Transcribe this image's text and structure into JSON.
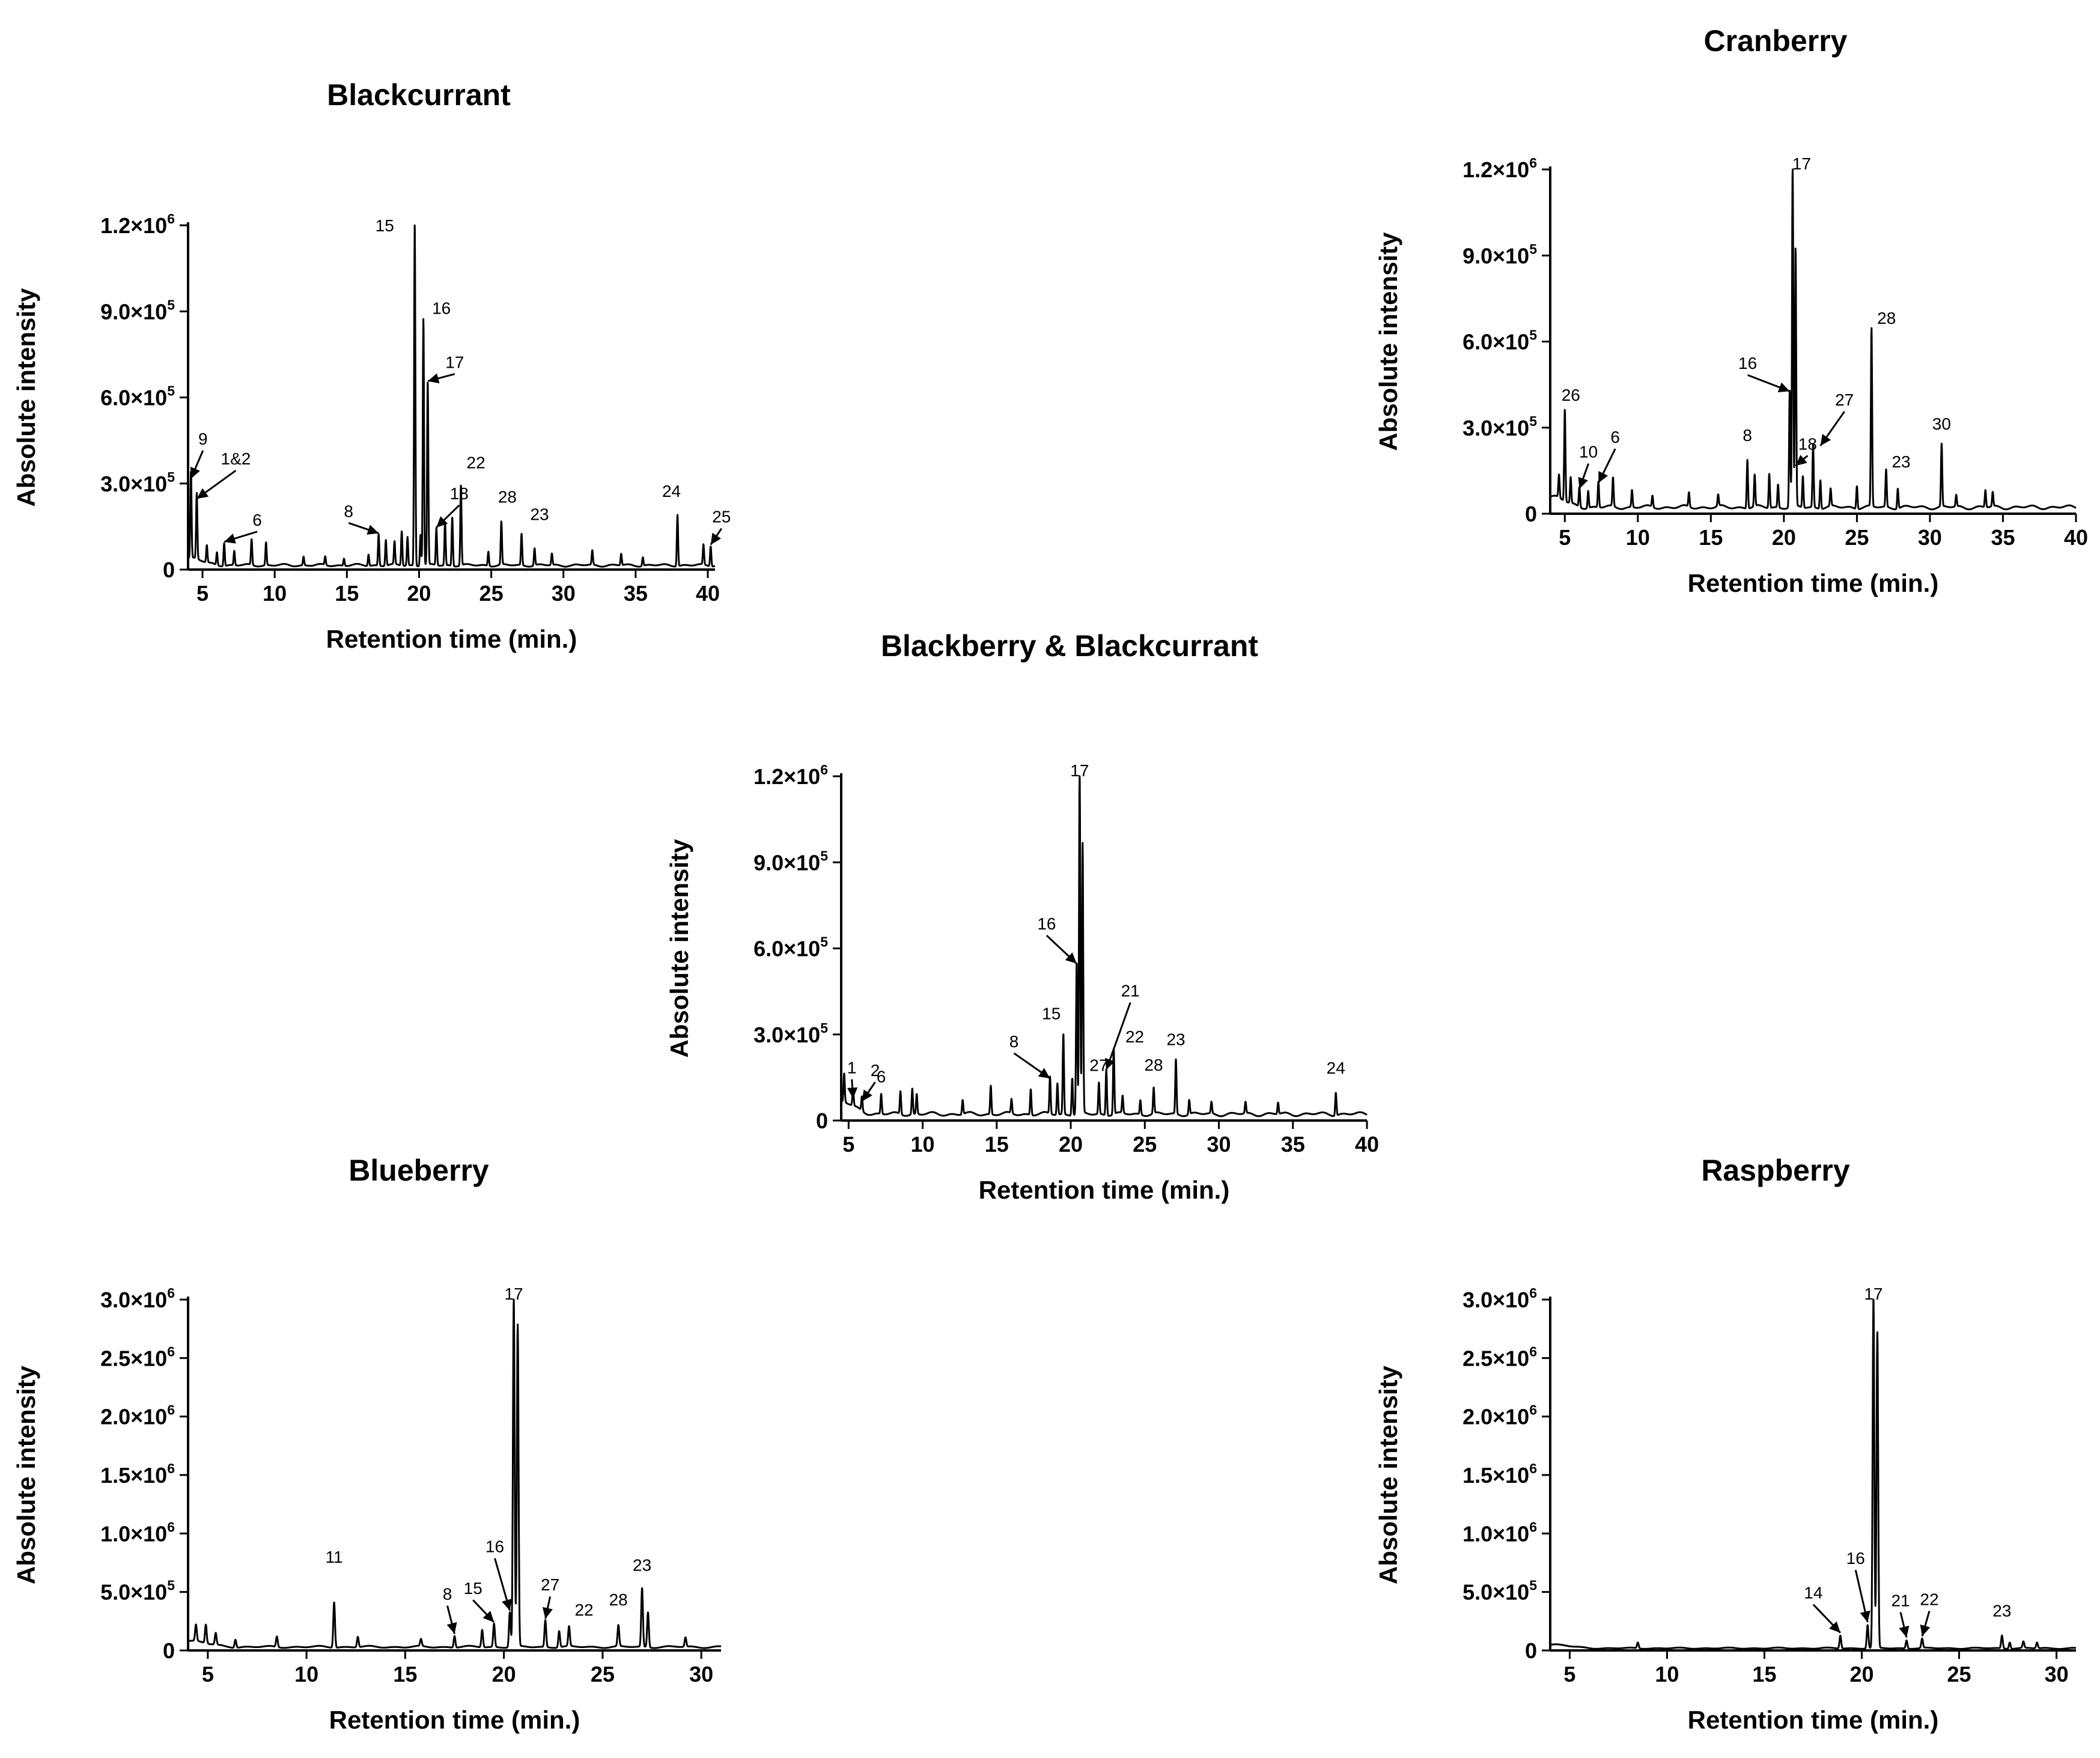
{
  "chart_data": [
    {
      "type": "line",
      "title": "Blackcurrant",
      "xlabel": "Retention time (min.)",
      "ylabel": "Absolute intensity",
      "xlim": [
        4,
        40.5
      ],
      "ylim": [
        0,
        1200000
      ],
      "xticks": [
        5,
        10,
        15,
        20,
        25,
        30,
        35,
        40
      ],
      "xtick_labels": [
        "5",
        "10",
        "15",
        "20",
        "25",
        "30",
        "35",
        "40"
      ],
      "yticks": [
        {
          "value": 0,
          "mant": "0",
          "exp": ""
        },
        {
          "value": 300000,
          "mant": "3.0×10",
          "exp": "5"
        },
        {
          "value": 600000,
          "mant": "6.0×10",
          "exp": "5"
        },
        {
          "value": 900000,
          "mant": "9.0×10",
          "exp": "5"
        },
        {
          "value": 1200000,
          "mant": "1.2×10",
          "exp": "6"
        }
      ],
      "baseline": 20000,
      "peaks": [
        [
          4.2,
          300000
        ],
        [
          4.6,
          230000
        ],
        [
          5.3,
          60000
        ],
        [
          6.0,
          45000
        ],
        [
          6.5,
          80000
        ],
        [
          7.2,
          50000
        ],
        [
          8.4,
          90000
        ],
        [
          9.4,
          80000
        ],
        [
          12.0,
          30000
        ],
        [
          13.5,
          30000
        ],
        [
          14.8,
          25000
        ],
        [
          16.5,
          40000
        ],
        [
          17.2,
          110000
        ],
        [
          17.7,
          90000
        ],
        [
          18.3,
          80000
        ],
        [
          18.8,
          120000
        ],
        [
          19.2,
          100000
        ],
        [
          19.7,
          1200000
        ],
        [
          20.1,
          110000
        ],
        [
          20.3,
          860000
        ],
        [
          20.6,
          640000
        ],
        [
          21.2,
          130000
        ],
        [
          21.8,
          150000
        ],
        [
          22.3,
          170000
        ],
        [
          22.9,
          280000
        ],
        [
          24.8,
          50000
        ],
        [
          25.7,
          150000
        ],
        [
          27.1,
          110000
        ],
        [
          28.0,
          60000
        ],
        [
          29.2,
          40000
        ],
        [
          32.0,
          50000
        ],
        [
          34.0,
          40000
        ],
        [
          35.5,
          30000
        ],
        [
          37.9,
          180000
        ],
        [
          39.7,
          70000
        ],
        [
          40.2,
          70000
        ]
      ],
      "annotations": [
        {
          "label": "15",
          "x": 19.7,
          "y": 1200000,
          "arrow": false
        },
        {
          "label": "16",
          "x": 20.3,
          "y": 860000,
          "arrow": false
        },
        {
          "label": "17",
          "x": 20.6,
          "y": 640000,
          "arrow": true
        },
        {
          "label": "9",
          "x": 4.2,
          "y": 300000,
          "arrow": true
        },
        {
          "label": "1&2",
          "x": 4.6,
          "y": 230000,
          "arrow": true
        },
        {
          "label": "6",
          "x": 6.5,
          "y": 80000,
          "arrow": true
        },
        {
          "label": "8",
          "x": 17.2,
          "y": 110000,
          "arrow": true
        },
        {
          "label": "18",
          "x": 21.2,
          "y": 130000,
          "arrow": true
        },
        {
          "label": "22",
          "x": 22.9,
          "y": 280000,
          "arrow": false
        },
        {
          "label": "28",
          "x": 25.7,
          "y": 150000,
          "arrow": false
        },
        {
          "label": "23",
          "x": 27.1,
          "y": 110000,
          "arrow": false
        },
        {
          "label": "24",
          "x": 37.9,
          "y": 180000,
          "arrow": false
        },
        {
          "label": "25",
          "x": 40.2,
          "y": 70000,
          "arrow": true
        }
      ]
    },
    {
      "type": "line",
      "title": "Cranberry",
      "xlabel": "Retention time (min.)",
      "ylabel": "Absolute intensity",
      "xlim": [
        4,
        40
      ],
      "ylim": [
        0,
        1200000
      ],
      "xticks": [
        5,
        10,
        15,
        20,
        25,
        30,
        35,
        40
      ],
      "xtick_labels": [
        "5",
        "10",
        "15",
        "20",
        "25",
        "30",
        "35",
        "40"
      ],
      "yticks": [
        {
          "value": 0,
          "mant": "0",
          "exp": ""
        },
        {
          "value": 300000,
          "mant": "3.0×10",
          "exp": "5"
        },
        {
          "value": 600000,
          "mant": "6.0×10",
          "exp": "5"
        },
        {
          "value": 900000,
          "mant": "9.0×10",
          "exp": "5"
        },
        {
          "value": 1200000,
          "mant": "1.2×10",
          "exp": "6"
        }
      ],
      "baseline": 30000,
      "peaks": [
        [
          4.6,
          80000
        ],
        [
          5.0,
          320000
        ],
        [
          5.4,
          90000
        ],
        [
          6.0,
          70000
        ],
        [
          6.6,
          60000
        ],
        [
          7.3,
          90000
        ],
        [
          8.3,
          100000
        ],
        [
          9.6,
          60000
        ],
        [
          11.0,
          40000
        ],
        [
          13.5,
          50000
        ],
        [
          15.5,
          40000
        ],
        [
          17.5,
          170000
        ],
        [
          18.0,
          110000
        ],
        [
          19.0,
          120000
        ],
        [
          19.6,
          80000
        ],
        [
          20.4,
          410000
        ],
        [
          20.6,
          1200000
        ],
        [
          20.8,
          900000
        ],
        [
          21.3,
          110000
        ],
        [
          22.0,
          220000
        ],
        [
          22.5,
          100000
        ],
        [
          23.2,
          60000
        ],
        [
          25.0,
          80000
        ],
        [
          26.0,
          620000
        ],
        [
          27.0,
          130000
        ],
        [
          27.8,
          70000
        ],
        [
          30.8,
          220000
        ],
        [
          31.8,
          40000
        ],
        [
          33.8,
          60000
        ],
        [
          34.3,
          50000
        ]
      ],
      "annotations": [
        {
          "label": "17",
          "x": 20.6,
          "y": 1200000,
          "arrow": false
        },
        {
          "label": "28",
          "x": 26.0,
          "y": 620000,
          "arrow": false
        },
        {
          "label": "26",
          "x": 5.0,
          "y": 320000,
          "arrow": false
        },
        {
          "label": "10",
          "x": 6.0,
          "y": 70000,
          "arrow": true
        },
        {
          "label": "6",
          "x": 7.3,
          "y": 90000,
          "arrow": true
        },
        {
          "label": "8",
          "x": 17.5,
          "y": 170000,
          "arrow": false
        },
        {
          "label": "16",
          "x": 20.4,
          "y": 410000,
          "arrow": true
        },
        {
          "label": "18",
          "x": 20.8,
          "y": 150000,
          "arrow": true
        },
        {
          "label": "27",
          "x": 22.5,
          "y": 220000,
          "arrow": true
        },
        {
          "label": "23",
          "x": 27.0,
          "y": 130000,
          "arrow": false
        },
        {
          "label": "30",
          "x": 30.8,
          "y": 220000,
          "arrow": false
        }
      ]
    },
    {
      "type": "line",
      "title": "Blackberry & Blackcurrant",
      "xlabel": "Retention time (min.)",
      "ylabel": "Absolute intensity",
      "xlim": [
        4.5,
        40
      ],
      "ylim": [
        0,
        1200000
      ],
      "xticks": [
        5,
        10,
        15,
        20,
        25,
        30,
        35,
        40
      ],
      "xtick_labels": [
        "5",
        "10",
        "15",
        "20",
        "25",
        "30",
        "35",
        "40"
      ],
      "yticks": [
        {
          "value": 0,
          "mant": "0",
          "exp": ""
        },
        {
          "value": 300000,
          "mant": "3.0×10",
          "exp": "5"
        },
        {
          "value": 600000,
          "mant": "6.0×10",
          "exp": "5"
        },
        {
          "value": 900000,
          "mant": "9.0×10",
          "exp": "5"
        },
        {
          "value": 1200000,
          "mant": "1.2×10",
          "exp": "6"
        }
      ],
      "baseline": 30000,
      "peaks": [
        [
          4.7,
          100000
        ],
        [
          5.3,
          60000
        ],
        [
          5.9,
          50000
        ],
        [
          7.2,
          70000
        ],
        [
          8.5,
          80000
        ],
        [
          9.3,
          90000
        ],
        [
          9.6,
          70000
        ],
        [
          12.7,
          50000
        ],
        [
          14.6,
          100000
        ],
        [
          16.0,
          50000
        ],
        [
          17.3,
          90000
        ],
        [
          18.6,
          130000
        ],
        [
          19.1,
          110000
        ],
        [
          19.5,
          280000
        ],
        [
          20.1,
          130000
        ],
        [
          20.4,
          530000
        ],
        [
          20.6,
          1200000
        ],
        [
          20.8,
          940000
        ],
        [
          21.9,
          110000
        ],
        [
          22.4,
          160000
        ],
        [
          22.9,
          230000
        ],
        [
          23.5,
          60000
        ],
        [
          24.7,
          50000
        ],
        [
          25.6,
          90000
        ],
        [
          27.1,
          190000
        ],
        [
          28.0,
          50000
        ],
        [
          29.5,
          40000
        ],
        [
          31.8,
          40000
        ],
        [
          34.0,
          40000
        ],
        [
          37.9,
          80000
        ]
      ],
      "annotations": [
        {
          "label": "17",
          "x": 20.6,
          "y": 1200000,
          "arrow": false
        },
        {
          "label": "16",
          "x": 20.4,
          "y": 530000,
          "arrow": true
        },
        {
          "label": "21",
          "x": 22.4,
          "y": 160000,
          "arrow": true
        },
        {
          "label": "1",
          "x": 5.3,
          "y": 60000,
          "arrow": true
        },
        {
          "label": "2",
          "x": 5.9,
          "y": 50000,
          "arrow": true
        },
        {
          "label": "6",
          "x": 7.2,
          "y": 70000,
          "arrow": false
        },
        {
          "label": "8",
          "x": 18.6,
          "y": 130000,
          "arrow": true
        },
        {
          "label": "15",
          "x": 19.5,
          "y": 280000,
          "arrow": false
        },
        {
          "label": "22",
          "x": 22.9,
          "y": 230000,
          "arrow": false
        },
        {
          "label": "27",
          "x": 21.9,
          "y": 110000,
          "arrow": false
        },
        {
          "label": "28",
          "x": 25.6,
          "y": 90000,
          "arrow": false
        },
        {
          "label": "23",
          "x": 27.1,
          "y": 190000,
          "arrow": false
        },
        {
          "label": "24",
          "x": 37.9,
          "y": 80000,
          "arrow": false
        }
      ]
    },
    {
      "type": "line",
      "title": "Blueberry",
      "xlabel": "Retention time (min.)",
      "ylabel": "Absolute intensity",
      "xlim": [
        4,
        31
      ],
      "ylim": [
        0,
        3000000
      ],
      "xticks": [
        5,
        10,
        15,
        20,
        25,
        30
      ],
      "xtick_labels": [
        "5",
        "10",
        "15",
        "20",
        "25",
        "30"
      ],
      "yticks": [
        {
          "value": 0,
          "mant": "0",
          "exp": ""
        },
        {
          "value": 500000,
          "mant": "5.0×10",
          "exp": "5"
        },
        {
          "value": 1000000,
          "mant": "1.0×10",
          "exp": "6"
        },
        {
          "value": 1500000,
          "mant": "1.5×10",
          "exp": "6"
        },
        {
          "value": 2000000,
          "mant": "2.0×10",
          "exp": "6"
        },
        {
          "value": 2500000,
          "mant": "2.5×10",
          "exp": "6"
        },
        {
          "value": 3000000,
          "mant": "3.0×10",
          "exp": "6"
        }
      ],
      "baseline": 40000,
      "peaks": [
        [
          4.4,
          140000
        ],
        [
          4.9,
          160000
        ],
        [
          5.4,
          100000
        ],
        [
          6.4,
          70000
        ],
        [
          8.5,
          90000
        ],
        [
          11.4,
          390000
        ],
        [
          12.6,
          90000
        ],
        [
          15.8,
          60000
        ],
        [
          17.5,
          100000
        ],
        [
          18.9,
          150000
        ],
        [
          19.5,
          200000
        ],
        [
          20.3,
          300000
        ],
        [
          20.5,
          3000000
        ],
        [
          20.7,
          2750000
        ],
        [
          22.1,
          230000
        ],
        [
          22.8,
          140000
        ],
        [
          23.3,
          170000
        ],
        [
          25.8,
          180000
        ],
        [
          27.0,
          500000
        ],
        [
          27.3,
          300000
        ],
        [
          29.2,
          80000
        ]
      ],
      "annotations": [
        {
          "label": "17",
          "x": 20.5,
          "y": 3000000,
          "arrow": false
        },
        {
          "label": "11",
          "x": 11.4,
          "y": 390000,
          "arrow": false
        },
        {
          "label": "8",
          "x": 17.5,
          "y": 100000,
          "arrow": true
        },
        {
          "label": "15",
          "x": 19.5,
          "y": 200000,
          "arrow": true
        },
        {
          "label": "16",
          "x": 20.3,
          "y": 300000,
          "arrow": true
        },
        {
          "label": "27",
          "x": 22.1,
          "y": 230000,
          "arrow": true
        },
        {
          "label": "22",
          "x": 23.3,
          "y": 170000,
          "arrow": false
        },
        {
          "label": "28",
          "x": 25.8,
          "y": 180000,
          "arrow": false
        },
        {
          "label": "23",
          "x": 27.0,
          "y": 500000,
          "arrow": false
        }
      ]
    },
    {
      "type": "line",
      "title": "Raspberry",
      "xlabel": "Retention time (min.)",
      "ylabel": "Absolute intensity",
      "xlim": [
        4,
        31
      ],
      "ylim": [
        0,
        3000000
      ],
      "xticks": [
        5,
        10,
        15,
        20,
        25,
        30
      ],
      "xtick_labels": [
        "5",
        "10",
        "15",
        "20",
        "25",
        "30"
      ],
      "yticks": [
        {
          "value": 0,
          "mant": "0",
          "exp": ""
        },
        {
          "value": 500000,
          "mant": "5.0×10",
          "exp": "5"
        },
        {
          "value": 1000000,
          "mant": "1.0×10",
          "exp": "6"
        },
        {
          "value": 1500000,
          "mant": "1.5×10",
          "exp": "6"
        },
        {
          "value": 2000000,
          "mant": "2.0×10",
          "exp": "6"
        },
        {
          "value": 2500000,
          "mant": "2.5×10",
          "exp": "6"
        },
        {
          "value": 3000000,
          "mant": "3.0×10",
          "exp": "6"
        }
      ],
      "baseline": 25000,
      "peaks": [
        [
          8.5,
          50000
        ],
        [
          18.9,
          110000
        ],
        [
          20.3,
          200000
        ],
        [
          20.6,
          3000000
        ],
        [
          20.8,
          2700000
        ],
        [
          22.3,
          70000
        ],
        [
          23.1,
          80000
        ],
        [
          27.2,
          110000
        ],
        [
          27.6,
          55000
        ],
        [
          28.3,
          55000
        ],
        [
          29.0,
          50000
        ]
      ],
      "annotations": [
        {
          "label": "17",
          "x": 20.6,
          "y": 3000000,
          "arrow": false
        },
        {
          "label": "14",
          "x": 18.9,
          "y": 110000,
          "arrow": true
        },
        {
          "label": "16",
          "x": 20.3,
          "y": 200000,
          "arrow": true
        },
        {
          "label": "21",
          "x": 22.3,
          "y": 70000,
          "arrow": true
        },
        {
          "label": "22",
          "x": 23.1,
          "y": 80000,
          "arrow": true
        },
        {
          "label": "23",
          "x": 27.2,
          "y": 110000,
          "arrow": false
        }
      ]
    }
  ]
}
